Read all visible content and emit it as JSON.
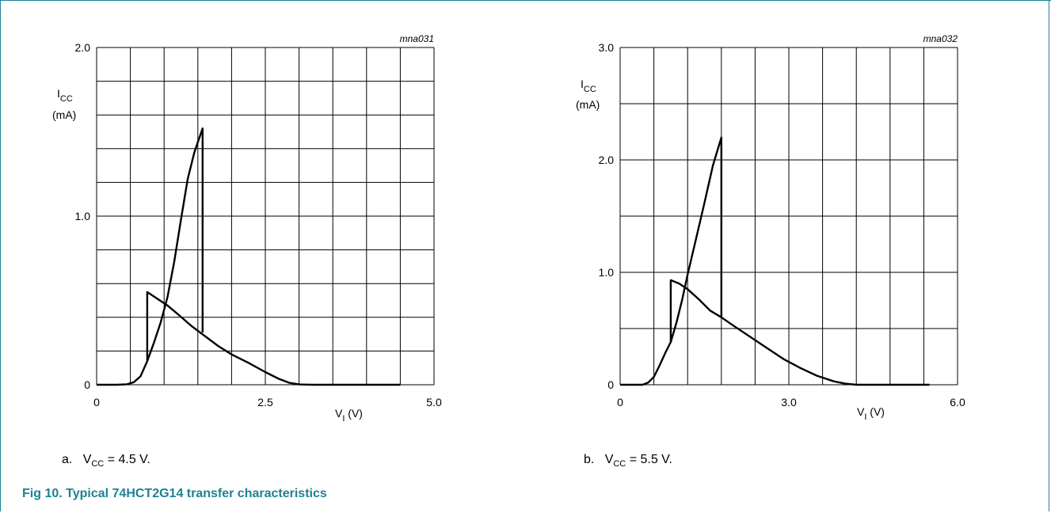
{
  "figure": {
    "title": "Fig 10. Typical 74HCT2G14 transfer characteristics",
    "accent_color": "#1c8294"
  },
  "chart_data": [
    {
      "type": "line",
      "id": "mna031",
      "code": "mna031",
      "caption": {
        "prefix": "a.",
        "var": "V",
        "sub": "CC",
        "text": " = 4.5 V."
      },
      "ylabel": {
        "main": "I",
        "sub": "CC",
        "unit": "(mA)"
      },
      "xlabel": {
        "main": "V",
        "sub": "I",
        "unit": " (V)"
      },
      "xlim": [
        0,
        5.0
      ],
      "ylim": [
        0,
        2.0
      ],
      "xticks": [
        "0",
        "2.5",
        "5.0"
      ],
      "xtick_values": [
        0,
        2.5,
        5.0
      ],
      "yticks": [
        "0",
        "1.0",
        "2.0"
      ],
      "ytick_values": [
        0,
        1.0,
        2.0
      ],
      "grid": {
        "x_divisions": 10,
        "y_divisions": 10
      },
      "series": [
        {
          "values": [
            [
              0,
              0
            ],
            [
              0.3,
              0
            ],
            [
              0.45,
              0.003
            ],
            [
              0.55,
              0.015
            ],
            [
              0.65,
              0.05
            ],
            [
              0.75,
              0.14
            ],
            [
              0.85,
              0.25
            ],
            [
              0.95,
              0.37
            ],
            [
              1.05,
              0.52
            ],
            [
              1.15,
              0.73
            ],
            [
              1.25,
              0.98
            ],
            [
              1.35,
              1.22
            ],
            [
              1.45,
              1.38
            ],
            [
              1.57,
              1.52
            ],
            [
              1.57,
              0.31
            ]
          ]
        },
        {
          "values": [
            [
              0.75,
              0.14
            ],
            [
              0.75,
              0.55
            ],
            [
              0.9,
              0.51
            ],
            [
              1.05,
              0.47
            ],
            [
              1.2,
              0.42
            ],
            [
              1.4,
              0.35
            ],
            [
              1.6,
              0.29
            ],
            [
              1.8,
              0.23
            ],
            [
              2.0,
              0.18
            ],
            [
              2.25,
              0.13
            ],
            [
              2.5,
              0.075
            ],
            [
              2.7,
              0.035
            ],
            [
              2.85,
              0.012
            ],
            [
              3.0,
              0.002
            ],
            [
              3.2,
              0
            ],
            [
              4.5,
              0
            ]
          ]
        }
      ]
    },
    {
      "type": "line",
      "id": "mna032",
      "code": "mna032",
      "caption": {
        "prefix": "b.",
        "var": "V",
        "sub": "CC",
        "text": " = 5.5 V."
      },
      "ylabel": {
        "main": "I",
        "sub": "CC",
        "unit": "(mA)"
      },
      "xlabel": {
        "main": "V",
        "sub": "I",
        "unit": " (V)"
      },
      "xlim": [
        0,
        6.0
      ],
      "ylim": [
        0,
        3.0
      ],
      "xticks": [
        "0",
        "3.0",
        "6.0"
      ],
      "xtick_values": [
        0,
        3.0,
        6.0
      ],
      "yticks": [
        "0",
        "1.0",
        "2.0",
        "3.0"
      ],
      "ytick_values": [
        0,
        1.0,
        2.0,
        3.0
      ],
      "grid": {
        "x_divisions": 10,
        "y_divisions": 6
      },
      "series": [
        {
          "values": [
            [
              0,
              0
            ],
            [
              0.4,
              0
            ],
            [
              0.5,
              0.02
            ],
            [
              0.6,
              0.07
            ],
            [
              0.7,
              0.17
            ],
            [
              0.8,
              0.28
            ],
            [
              0.9,
              0.38
            ],
            [
              1.0,
              0.55
            ],
            [
              1.1,
              0.75
            ],
            [
              1.2,
              0.98
            ],
            [
              1.35,
              1.3
            ],
            [
              1.5,
              1.62
            ],
            [
              1.65,
              1.95
            ],
            [
              1.8,
              2.2
            ],
            [
              1.8,
              0.6
            ]
          ]
        },
        {
          "values": [
            [
              0.9,
              0.38
            ],
            [
              0.9,
              0.93
            ],
            [
              1.05,
              0.9
            ],
            [
              1.2,
              0.85
            ],
            [
              1.4,
              0.76
            ],
            [
              1.6,
              0.66
            ],
            [
              1.8,
              0.6
            ],
            [
              2.0,
              0.53
            ],
            [
              2.3,
              0.43
            ],
            [
              2.6,
              0.33
            ],
            [
              2.9,
              0.23
            ],
            [
              3.2,
              0.15
            ],
            [
              3.5,
              0.08
            ],
            [
              3.8,
              0.03
            ],
            [
              4.0,
              0.01
            ],
            [
              4.2,
              0
            ],
            [
              5.5,
              0
            ]
          ]
        }
      ]
    }
  ]
}
